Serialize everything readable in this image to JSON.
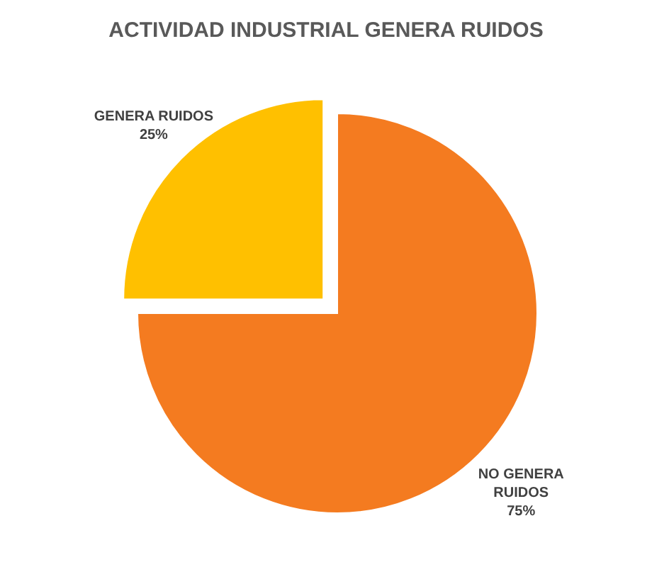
{
  "chart_data": {
    "type": "pie",
    "title": "ACTIVIDAD INDUSTRIAL GENERA RUIDOS",
    "categories": [
      "GENERA RUIDOS",
      "NO GENERA RUIDOS"
    ],
    "values": [
      25,
      75
    ],
    "colors": [
      "#ffc000",
      "#f47b20"
    ],
    "value_labels": [
      "25%",
      "75%"
    ]
  }
}
